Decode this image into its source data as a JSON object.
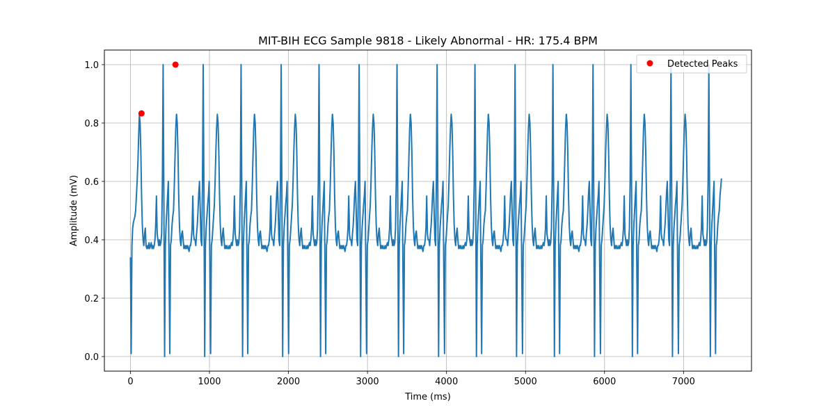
{
  "chart_data": {
    "type": "line",
    "title": "MIT-BIH ECG Sample 9818 - Likely Abnormal - HR: 175.4 BPM",
    "xlabel": "Time (ms)",
    "ylabel": "Amplitude (mV)",
    "xlim": [
      -330,
      7860
    ],
    "ylim": [
      -0.05,
      1.05
    ],
    "xticks": [
      0,
      1000,
      2000,
      3000,
      4000,
      5000,
      6000,
      7000
    ],
    "yticks": [
      0.0,
      0.2,
      0.4,
      0.6,
      0.8,
      1.0
    ],
    "xtick_labels": [
      "0",
      "1000",
      "2000",
      "3000",
      "4000",
      "5000",
      "6000",
      "7000"
    ],
    "ytick_labels": [
      "0.0",
      "0.2",
      "0.4",
      "0.6",
      "0.8",
      "1.0"
    ],
    "grid": true,
    "legend_position": "top-right",
    "colors": {
      "signal": "#1f77b4",
      "peaks": "#ff0000",
      "grid": "#b0b0b0"
    },
    "series": [
      {
        "kind": "line",
        "sample_interval_ms": 8,
        "duration_ms": 7480,
        "values": [
          0.34,
          0.01,
          0.38,
          0.44,
          0.46,
          0.47,
          0.48,
          0.5,
          0.55,
          0.6,
          0.66,
          0.75,
          0.83,
          0.8,
          0.7,
          0.55,
          0.45,
          0.4,
          0.38,
          0.42,
          0.44,
          0.38,
          0.37,
          0.38,
          0.37,
          0.39,
          0.37,
          0.38,
          0.39,
          0.37,
          0.38,
          0.37,
          0.38,
          0.4,
          0.45,
          0.55,
          0.42,
          0.4,
          0.38,
          0.4,
          0.38,
          0.39,
          0.42,
          0.6,
          1.0,
          0.55,
          0.0,
          0.38,
          0.45,
          0.5,
          0.55,
          0.6,
          0.3,
          0.01,
          0.38,
          0.4,
          0.45,
          0.48,
          0.5,
          0.58,
          0.68,
          0.78,
          0.83,
          0.8,
          0.7,
          0.55,
          0.45,
          0.4,
          0.38,
          0.42,
          0.43,
          0.4,
          0.37,
          0.38,
          0.37,
          0.38,
          0.37,
          0.38,
          0.37,
          0.36,
          0.38,
          0.38,
          0.4,
          0.44,
          0.55,
          0.42,
          0.4,
          0.4,
          0.38,
          0.42,
          0.45,
          0.5,
          0.56,
          0.6,
          0.5,
          0.4,
          0.38,
          0.6,
          1.0,
          0.55,
          0.0,
          0.38,
          0.44,
          0.48,
          0.52,
          0.55,
          0.6,
          0.3,
          0.01,
          0.38,
          0.4,
          0.44,
          0.48,
          0.52,
          0.6,
          0.7,
          0.78,
          0.83,
          0.8,
          0.7,
          0.55,
          0.45,
          0.4,
          0.38,
          0.42,
          0.44,
          0.4,
          0.37,
          0.38,
          0.37,
          0.38,
          0.37,
          0.37,
          0.38,
          0.37,
          0.38,
          0.39,
          0.38,
          0.4,
          0.44,
          0.55,
          0.42,
          0.4,
          0.38,
          0.4,
          0.38,
          0.39,
          0.44,
          0.6,
          1.0,
          0.55,
          0.0,
          0.38,
          0.45,
          0.5,
          0.55,
          0.6,
          0.3,
          0.01,
          0.38,
          0.4,
          0.45,
          0.48,
          0.5,
          0.58,
          0.68,
          0.78,
          0.83,
          0.8,
          0.7,
          0.55,
          0.45,
          0.4,
          0.38,
          0.42,
          0.43,
          0.4,
          0.37,
          0.38,
          0.37,
          0.38,
          0.37,
          0.38,
          0.37,
          0.36,
          0.38,
          0.38,
          0.4,
          0.44,
          0.55,
          0.42,
          0.4,
          0.4,
          0.38,
          0.42,
          0.45,
          0.5,
          0.56,
          0.6,
          0.5,
          0.4,
          0.38,
          0.6,
          1.0,
          0.55,
          0.0,
          0.38,
          0.44,
          0.48,
          0.52,
          0.55,
          0.6,
          0.3,
          0.01,
          0.38,
          0.4,
          0.44,
          0.48,
          0.52,
          0.6,
          0.7,
          0.78,
          0.83,
          0.8,
          0.7,
          0.55,
          0.45,
          0.4,
          0.38,
          0.42,
          0.44,
          0.4,
          0.37,
          0.38,
          0.37,
          0.38,
          0.37,
          0.37,
          0.38,
          0.37,
          0.38,
          0.39,
          0.38,
          0.4,
          0.44,
          0.55,
          0.42,
          0.4,
          0.38,
          0.4,
          0.38,
          0.39,
          0.44,
          0.6,
          1.0,
          0.55,
          0.0,
          0.38,
          0.45,
          0.5,
          0.55,
          0.6,
          0.3,
          0.01,
          0.38,
          0.4,
          0.45,
          0.48,
          0.5,
          0.58,
          0.68,
          0.78,
          0.83,
          0.8,
          0.7,
          0.55,
          0.45,
          0.4,
          0.38,
          0.42,
          0.43,
          0.4,
          0.37,
          0.38,
          0.37,
          0.38,
          0.37,
          0.38,
          0.37,
          0.36,
          0.38,
          0.38,
          0.4,
          0.44,
          0.55,
          0.42,
          0.4,
          0.4,
          0.38,
          0.42,
          0.45,
          0.5,
          0.56,
          0.6,
          0.5,
          0.4,
          0.38,
          0.6,
          1.0,
          0.55,
          0.0,
          0.38,
          0.44,
          0.48,
          0.52,
          0.55,
          0.6,
          0.3,
          0.01,
          0.38,
          0.4,
          0.44,
          0.48,
          0.52,
          0.6,
          0.7,
          0.78,
          0.83,
          0.8,
          0.7,
          0.55,
          0.45,
          0.4,
          0.38,
          0.42,
          0.44,
          0.4,
          0.37,
          0.38,
          0.37,
          0.38,
          0.37,
          0.37,
          0.38,
          0.37,
          0.38,
          0.39,
          0.38,
          0.4,
          0.44,
          0.55,
          0.42,
          0.4,
          0.38,
          0.4,
          0.38,
          0.39,
          0.44,
          0.6,
          1.0,
          0.55,
          0.0,
          0.38,
          0.45,
          0.5,
          0.55,
          0.6,
          0.3,
          0.01,
          0.38,
          0.4,
          0.45,
          0.48,
          0.5,
          0.58,
          0.68,
          0.78,
          0.83,
          0.8,
          0.7,
          0.55,
          0.45,
          0.4,
          0.38,
          0.42,
          0.43,
          0.4,
          0.37,
          0.38,
          0.37,
          0.38,
          0.37,
          0.38,
          0.37,
          0.36,
          0.38,
          0.38,
          0.4,
          0.44,
          0.55,
          0.42,
          0.4,
          0.4,
          0.38,
          0.42,
          0.45,
          0.5,
          0.56,
          0.6,
          0.5,
          0.4,
          0.38,
          0.6,
          1.0,
          0.55,
          0.0,
          0.38,
          0.44,
          0.48,
          0.52,
          0.55,
          0.6,
          0.3,
          0.01,
          0.38,
          0.4,
          0.44,
          0.48,
          0.52,
          0.6,
          0.7,
          0.78,
          0.83,
          0.8,
          0.7,
          0.55,
          0.45,
          0.4,
          0.38,
          0.42,
          0.44,
          0.4,
          0.37,
          0.38,
          0.37,
          0.38,
          0.37,
          0.37,
          0.38,
          0.37,
          0.38,
          0.39,
          0.38,
          0.4,
          0.44,
          0.55,
          0.42,
          0.4,
          0.38,
          0.4,
          0.38,
          0.39,
          0.44,
          0.6,
          1.0,
          0.55,
          0.0,
          0.38,
          0.45,
          0.5,
          0.55,
          0.6,
          0.3,
          0.01,
          0.38,
          0.4,
          0.45,
          0.48,
          0.5,
          0.58,
          0.68,
          0.78,
          0.83,
          0.8,
          0.7,
          0.55,
          0.45,
          0.4,
          0.38,
          0.42,
          0.43,
          0.4,
          0.37,
          0.38,
          0.37,
          0.38,
          0.37,
          0.38,
          0.37,
          0.36,
          0.38,
          0.38,
          0.4,
          0.44,
          0.55,
          0.42,
          0.4,
          0.4,
          0.38,
          0.42,
          0.45,
          0.5,
          0.56,
          0.6,
          0.5,
          0.4,
          0.38,
          0.6,
          1.0,
          0.55,
          0.0,
          0.38,
          0.44,
          0.48,
          0.52,
          0.55,
          0.6,
          0.3,
          0.01,
          0.38,
          0.4,
          0.44,
          0.48,
          0.52,
          0.6,
          0.7,
          0.78,
          0.83,
          0.8,
          0.7,
          0.55,
          0.45,
          0.4,
          0.38,
          0.42,
          0.44,
          0.4,
          0.37,
          0.38,
          0.37,
          0.38,
          0.37,
          0.37,
          0.38,
          0.37,
          0.38,
          0.39,
          0.38,
          0.4,
          0.44,
          0.55,
          0.42,
          0.4,
          0.38,
          0.4,
          0.38,
          0.39,
          0.44,
          0.6,
          1.0,
          0.55,
          0.0,
          0.38,
          0.45,
          0.5,
          0.55,
          0.6,
          0.3,
          0.01,
          0.38,
          0.4,
          0.45,
          0.48,
          0.5,
          0.58,
          0.68,
          0.78,
          0.83,
          0.8,
          0.7,
          0.55,
          0.45,
          0.4,
          0.38,
          0.42,
          0.43,
          0.4,
          0.37,
          0.38,
          0.37,
          0.38,
          0.37,
          0.38,
          0.37,
          0.36,
          0.38,
          0.38,
          0.4,
          0.44,
          0.55,
          0.42,
          0.4,
          0.4,
          0.38,
          0.42,
          0.45,
          0.5,
          0.56,
          0.6,
          0.5,
          0.4,
          0.38,
          0.6,
          1.0,
          0.55,
          0.0,
          0.38,
          0.44,
          0.48,
          0.52,
          0.55,
          0.6,
          0.3,
          0.01,
          0.38,
          0.4,
          0.44,
          0.48,
          0.52,
          0.6,
          0.7,
          0.78,
          0.83,
          0.8,
          0.7,
          0.55,
          0.45,
          0.4,
          0.38,
          0.42,
          0.44,
          0.4,
          0.37,
          0.38,
          0.37,
          0.38,
          0.37,
          0.37,
          0.38,
          0.37,
          0.38,
          0.39,
          0.38,
          0.4,
          0.44,
          0.55,
          0.42,
          0.4,
          0.38,
          0.4,
          0.38,
          0.39,
          0.44,
          0.6,
          1.0,
          0.55,
          0.0,
          0.38,
          0.45,
          0.5,
          0.55,
          0.6,
          0.3,
          0.01,
          0.38,
          0.4,
          0.45,
          0.48,
          0.5,
          0.58,
          0.68,
          0.78,
          0.83,
          0.8,
          0.7,
          0.55,
          0.45,
          0.4,
          0.38,
          0.42,
          0.43,
          0.4,
          0.37,
          0.38,
          0.37,
          0.38,
          0.37,
          0.38,
          0.37,
          0.36,
          0.38,
          0.38,
          0.4,
          0.44,
          0.55,
          0.42,
          0.4,
          0.4,
          0.38,
          0.42,
          0.45,
          0.5,
          0.56,
          0.6,
          0.5,
          0.4,
          0.38,
          0.6,
          1.0,
          0.55,
          0.0,
          0.38,
          0.44,
          0.48,
          0.52,
          0.55,
          0.6,
          0.3,
          0.01,
          0.38,
          0.4,
          0.44,
          0.48,
          0.52,
          0.6,
          0.7,
          0.78,
          0.83,
          0.8,
          0.7,
          0.55,
          0.45,
          0.4,
          0.38,
          0.42,
          0.44,
          0.4,
          0.37,
          0.38,
          0.37,
          0.38,
          0.37,
          0.37,
          0.38,
          0.37,
          0.38,
          0.39,
          0.38,
          0.4,
          0.44,
          0.55,
          0.42,
          0.4,
          0.38,
          0.4,
          0.38,
          0.39,
          0.44,
          0.6,
          1.0,
          0.55,
          0.0,
          0.38,
          0.45,
          0.5,
          0.55,
          0.6,
          0.3,
          0.01,
          0.38,
          0.4,
          0.45,
          0.48,
          0.5,
          0.55,
          0.58,
          0.61
        ]
      },
      {
        "kind": "scatter",
        "name": "Detected Peaks",
        "x": [
          140,
          570
        ],
        "y": [
          0.833,
          1.0
        ]
      }
    ]
  }
}
